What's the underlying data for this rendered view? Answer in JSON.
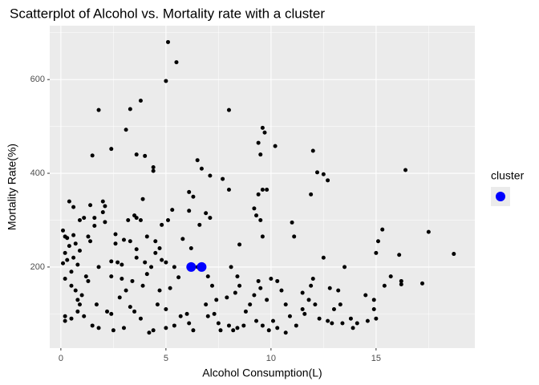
{
  "chart_data": {
    "type": "scatter",
    "title": "Scatterplot of Alcohol vs. Mortality rate with a cluster",
    "x_label": "Alcohol Consumption(L)",
    "y_label": "Mortality Rate(%)",
    "xlim": [
      -0.53,
      19.7
    ],
    "ylim": [
      27,
      715
    ],
    "xticks": [
      0,
      5,
      10,
      15
    ],
    "yticks": [
      200,
      400,
      600
    ],
    "x_minor": [
      2.5,
      7.5,
      12.5,
      17.5
    ],
    "y_minor": [
      100,
      300,
      500,
      700
    ],
    "grid": true,
    "color": "#000000",
    "x": [
      5.1,
      5.5,
      5.0,
      1.8,
      3.3,
      3.8,
      8.0,
      3.1,
      9.6,
      9.7,
      9.4,
      9.5,
      10.2,
      12.0,
      2.4,
      1.5,
      3.6,
      4.0,
      4.4,
      4.4,
      6.5,
      6.7,
      7.1,
      7.7,
      11.9,
      12.2,
      12.5,
      12.7,
      16.4,
      17.5,
      18.7,
      17.2,
      16.2,
      16.1,
      15.3,
      15.1,
      15.0,
      15.4,
      15.7,
      8.0,
      9.6,
      9.4,
      9.8,
      9.2,
      9.3,
      9.5,
      9.6,
      11.0,
      11.1,
      8.5,
      6.1,
      6.3,
      6.1,
      6.6,
      6.9,
      7.1,
      5.1,
      5.3,
      4.8,
      2.0,
      1.4,
      2.1,
      2.0,
      1.6,
      3.9,
      3.5,
      3.2,
      3.6,
      3.8,
      0.4,
      0.6,
      0.9,
      1.1,
      0.1,
      0.2,
      0.6,
      0.3,
      0.4,
      0.7,
      0.2,
      0.1,
      0.3,
      0.6,
      0.8,
      0.9,
      1.3,
      1.4,
      1.6,
      2.1,
      2.6,
      2.6,
      3.0,
      3.3,
      3.6,
      4.1,
      4.5,
      4.5,
      4.7,
      3.6,
      2.4,
      2.7,
      2.9,
      4.0,
      4.3,
      4.8,
      5.0,
      5.6,
      1.2,
      1.3,
      1.8,
      0.5,
      0.2,
      0.5,
      0.7,
      0.8,
      1.0,
      0.9,
      0.8,
      1.1,
      0.2,
      0.2,
      0.5,
      1.5,
      1.8,
      2.2,
      2.4,
      2.5,
      3.0,
      3.3,
      3.5,
      3.8,
      4.4,
      4.2,
      4.7,
      5.0,
      5.4,
      5.7,
      6.0,
      6.1,
      6.3,
      6.5,
      7.0,
      7.2,
      7.4,
      7.3,
      7.5,
      7.6,
      8.0,
      8.2,
      8.4,
      8.7,
      8.8,
      9.0,
      9.2,
      9.5,
      9.8,
      10.0,
      10.3,
      10.5,
      10.7,
      10.9,
      10.3,
      9.9,
      10.7,
      11.2,
      11.5,
      11.8,
      11.9,
      12.1,
      12.3,
      12.5,
      12.7,
      12.9,
      13.0,
      13.2,
      13.3,
      13.5,
      13.4,
      13.8,
      14.1,
      14.5,
      14.6,
      8.1,
      8.4,
      8.3,
      8.5,
      7.9,
      3.9,
      3.4,
      2.9,
      2.4,
      4.1,
      5.4,
      5.2,
      4.6,
      1.7,
      2.8,
      3.1,
      9.4,
      11.5,
      12.0,
      12.8,
      6.9,
      7.0,
      14.9,
      15.0,
      14.9,
      16.2,
      11.6,
      10.1,
      9.6,
      9.3,
      5.0,
      6.2,
      5.8,
      13.9
    ],
    "values": [
      680,
      637,
      597,
      535,
      537,
      555,
      535,
      493,
      497,
      487,
      465,
      440,
      458,
      448,
      452,
      438,
      440,
      437,
      413,
      405,
      428,
      410,
      395,
      388,
      355,
      402,
      398,
      385,
      407,
      275,
      228,
      165,
      163,
      226,
      280,
      255,
      230,
      160,
      180,
      365,
      365,
      355,
      365,
      325,
      310,
      300,
      265,
      295,
      265,
      248,
      360,
      350,
      320,
      290,
      315,
      305,
      300,
      322,
      290,
      340,
      332,
      330,
      317,
      305,
      345,
      310,
      300,
      305,
      300,
      340,
      328,
      300,
      305,
      278,
      265,
      268,
      262,
      245,
      250,
      230,
      208,
      215,
      220,
      205,
      235,
      265,
      255,
      288,
      296,
      270,
      250,
      258,
      255,
      238,
      265,
      255,
      230,
      240,
      220,
      212,
      210,
      205,
      210,
      200,
      215,
      210,
      178,
      180,
      170,
      200,
      190,
      175,
      160,
      150,
      130,
      140,
      120,
      105,
      95,
      95,
      85,
      90,
      75,
      70,
      105,
      100,
      65,
      70,
      115,
      105,
      90,
      65,
      60,
      150,
      110,
      75,
      95,
      100,
      80,
      65,
      200,
      180,
      160,
      130,
      100,
      80,
      65,
      75,
      65,
      70,
      75,
      105,
      120,
      140,
      155,
      130,
      175,
      170,
      150,
      120,
      95,
      70,
      65,
      60,
      75,
      110,
      130,
      160,
      120,
      90,
      220,
      85,
      80,
      110,
      150,
      120,
      200,
      80,
      90,
      80,
      140,
      85,
      200,
      180,
      145,
      160,
      135,
      160,
      170,
      175,
      180,
      185,
      200,
      155,
      120,
      120,
      135,
      150,
      170,
      145,
      175,
      155,
      120,
      95,
      110,
      90,
      130,
      170,
      100,
      85,
      75,
      85,
      70,
      240,
      260,
      70
    ],
    "cluster": {
      "title": "cluster",
      "color": "#0000ff",
      "x": [
        6.2,
        6.7
      ],
      "values": [
        200,
        200
      ]
    }
  }
}
